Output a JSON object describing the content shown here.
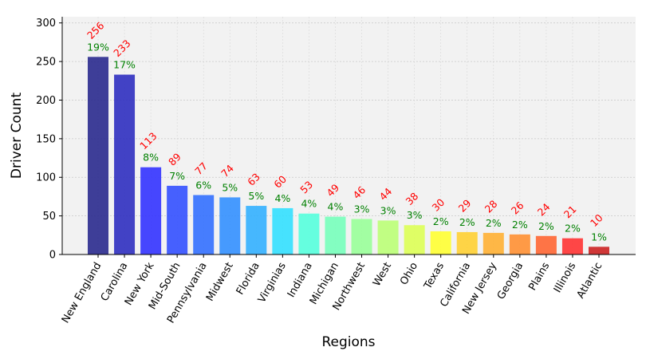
{
  "chart_data": {
    "type": "bar",
    "title": "",
    "xlabel": "Regions",
    "ylabel": "Driver Count",
    "ylim": [
      0,
      308
    ],
    "yticks": [
      0,
      50,
      100,
      150,
      200,
      250,
      300
    ],
    "grid": true,
    "categories": [
      "New England",
      "Carolina",
      "New York",
      "Mid-South",
      "Pennsylvania",
      "Midwest",
      "Florida",
      "Virginias",
      "Indiana",
      "Michigan",
      "Northwest",
      "West",
      "Ohio",
      "Texas",
      "California",
      "New Jersey",
      "Georgia",
      "Plains",
      "Illinois",
      "Atlantic"
    ],
    "values": [
      256,
      233,
      113,
      89,
      77,
      74,
      63,
      60,
      53,
      49,
      46,
      44,
      38,
      30,
      29,
      28,
      26,
      24,
      21,
      10
    ],
    "percent_labels": [
      "19%",
      "17%",
      "8%",
      "7%",
      "6%",
      "5%",
      "5%",
      "4%",
      "4%",
      "4%",
      "3%",
      "3%",
      "3%",
      "2%",
      "2%",
      "2%",
      "2%",
      "2%",
      "2%",
      "1%"
    ],
    "colors": [
      "#2a2a8e",
      "#2f2fc0",
      "#3333ff",
      "#3350ff",
      "#3370ff",
      "#3390ff",
      "#33b0ff",
      "#33e0ff",
      "#55ffdd",
      "#77ffbb",
      "#99ff99",
      "#bbff77",
      "#ddff55",
      "#ffff33",
      "#ffd033",
      "#ffb033",
      "#ff9033",
      "#ff6633",
      "#ff3333",
      "#cc2222"
    ],
    "value_label_color": "#ff0000",
    "percent_label_color": "#008000",
    "background_color": "#f2f2f2"
  }
}
